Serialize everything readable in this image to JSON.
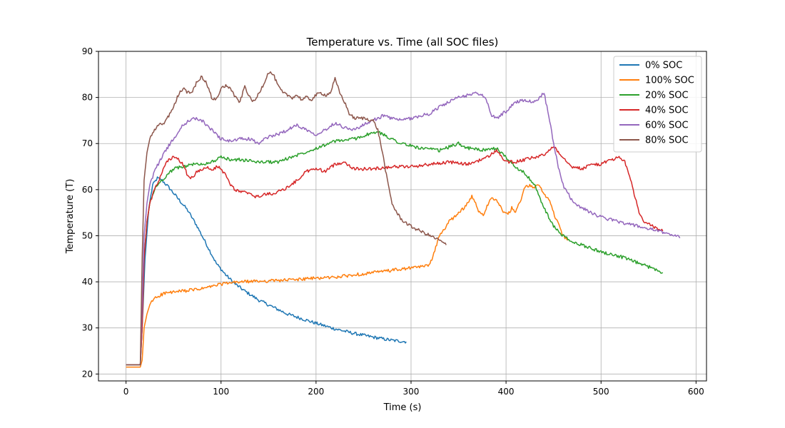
{
  "chart_data": {
    "type": "line",
    "title": "Temperature vs. Time (all SOC files)",
    "xlabel": "Time (s)",
    "ylabel": "Temperature (T)",
    "xlim": [
      -29,
      611
    ],
    "ylim": [
      18.5,
      90
    ],
    "xticks": [
      0,
      100,
      200,
      300,
      400,
      500,
      600
    ],
    "yticks": [
      20,
      30,
      40,
      50,
      60,
      70,
      80,
      90
    ],
    "grid": true,
    "legend_position": "top-right",
    "series": [
      {
        "name": "0% SOC",
        "color": "#1f77b4",
        "x": [
          0,
          15,
          17,
          20,
          24,
          28,
          33,
          38,
          45,
          55,
          65,
          75,
          85,
          95,
          105,
          115,
          125,
          140,
          155,
          170,
          185,
          200,
          220,
          240,
          260,
          280,
          295
        ],
        "y": [
          22,
          22,
          30,
          45,
          56,
          61,
          62.5,
          62,
          60.5,
          58,
          55.5,
          52,
          48,
          44,
          41.5,
          39.5,
          38,
          36,
          34.5,
          33,
          32,
          31,
          29.8,
          28.8,
          28,
          27.3,
          27
        ]
      },
      {
        "name": "100% SOC",
        "color": "#ff7f0e",
        "x": [
          0,
          15,
          17,
          19,
          22,
          25,
          30,
          40,
          60,
          80,
          90,
          100,
          120,
          150,
          180,
          200,
          220,
          240,
          260,
          280,
          300,
          318,
          322,
          326,
          330,
          340,
          350,
          358,
          364,
          368,
          372,
          376,
          380,
          385,
          390,
          394,
          398,
          402,
          406,
          410,
          415,
          420,
          425,
          430,
          435,
          440,
          445,
          450,
          455,
          460,
          465
        ],
        "y": [
          21.5,
          21.5,
          23,
          30,
          33,
          35,
          36.5,
          37.5,
          38,
          38.5,
          39,
          39.5,
          40,
          40.2,
          40.5,
          40.8,
          41,
          41.5,
          42,
          42.5,
          43,
          43.5,
          45,
          47.5,
          50,
          53,
          55,
          56.5,
          58.5,
          57,
          55,
          54.5,
          56.5,
          58.5,
          57.5,
          56.5,
          55,
          54.5,
          56,
          55,
          57.5,
          60.5,
          61,
          60.5,
          61,
          59,
          58,
          55,
          52.5,
          50,
          49
        ]
      },
      {
        "name": "20% SOC",
        "color": "#2ca02c",
        "x": [
          0,
          15,
          17,
          19,
          22,
          25,
          30,
          35,
          40,
          50,
          60,
          70,
          80,
          90,
          100,
          110,
          120,
          140,
          160,
          180,
          200,
          220,
          240,
          255,
          265,
          275,
          290,
          310,
          330,
          350,
          360,
          380,
          390,
          400,
          410,
          420,
          430,
          440,
          450,
          460,
          470,
          480,
          500,
          520,
          540,
          560,
          565
        ],
        "y": [
          22,
          22,
          30,
          45,
          53,
          57,
          60,
          61.5,
          62.5,
          64.5,
          65,
          65.5,
          65.5,
          66,
          67,
          66.5,
          66.5,
          66,
          66,
          67.5,
          69,
          70.5,
          71,
          72,
          72.5,
          71.5,
          70,
          69,
          68.5,
          70,
          69,
          68.5,
          69,
          67,
          65,
          63.5,
          61,
          56,
          52,
          50,
          48.5,
          48,
          46.5,
          45.5,
          44,
          42.5,
          42
        ]
      },
      {
        "name": "40% SOC",
        "color": "#d62728",
        "x": [
          0,
          15,
          17,
          19,
          22,
          25,
          30,
          35,
          40,
          45,
          50,
          55,
          60,
          65,
          70,
          75,
          80,
          85,
          90,
          95,
          100,
          105,
          110,
          115,
          120,
          125,
          130,
          135,
          140,
          145,
          150,
          160,
          170,
          180,
          190,
          200,
          210,
          220,
          230,
          240,
          260,
          280,
          300,
          320,
          340,
          360,
          380,
          390,
          400,
          410,
          420,
          430,
          440,
          445,
          450,
          460,
          470,
          480,
          490,
          500,
          510,
          520,
          525,
          530,
          535,
          540,
          545,
          555,
          565
        ],
        "y": [
          22,
          22,
          30,
          45,
          53,
          57,
          60,
          62,
          65,
          66.5,
          67,
          66.5,
          65.5,
          63,
          62.5,
          64,
          64.5,
          65,
          64,
          65,
          64.5,
          63,
          61,
          60,
          59.5,
          59.5,
          59,
          58.5,
          58.5,
          59,
          59,
          59.5,
          60.5,
          62,
          64,
          64.5,
          64,
          65.5,
          66,
          64.5,
          64.5,
          65,
          65,
          65.5,
          66,
          65.5,
          67,
          68.5,
          66,
          66,
          66.5,
          67,
          67.5,
          68.5,
          69.5,
          67,
          65,
          64.5,
          65.5,
          65.5,
          66.5,
          67,
          66,
          63,
          59,
          55,
          53,
          52,
          51
        ]
      },
      {
        "name": "60% SOC",
        "color": "#9467bd",
        "x": [
          0,
          15,
          17,
          19,
          22,
          25,
          30,
          35,
          40,
          50,
          60,
          70,
          80,
          90,
          100,
          110,
          120,
          130,
          140,
          150,
          160,
          170,
          180,
          190,
          200,
          210,
          220,
          230,
          240,
          250,
          260,
          270,
          280,
          290,
          300,
          310,
          320,
          330,
          340,
          350,
          360,
          370,
          375,
          380,
          385,
          390,
          400,
          410,
          420,
          430,
          440,
          445,
          450,
          455,
          460,
          470,
          480,
          490,
          500,
          510,
          520,
          530,
          540,
          550,
          560,
          570,
          580,
          583
        ],
        "y": [
          22,
          22,
          35,
          50,
          57,
          61,
          64,
          66,
          68,
          71,
          74,
          75.5,
          75,
          73,
          71,
          70.5,
          71,
          71,
          70,
          71.5,
          72,
          73,
          74,
          73,
          72,
          73,
          74.5,
          73.5,
          73,
          74,
          75,
          76,
          75.5,
          75,
          75.5,
          76,
          76.5,
          78,
          79,
          80,
          80.5,
          81,
          80.5,
          79,
          76,
          75.5,
          77,
          79,
          79.5,
          79,
          81,
          76,
          70,
          65,
          61,
          57.5,
          56,
          55,
          54,
          53.5,
          53,
          52.5,
          52,
          51.5,
          51,
          50.5,
          50,
          49.5
        ]
      },
      {
        "name": "80% SOC",
        "color": "#8c564b",
        "x": [
          0,
          15,
          17,
          19,
          22,
          25,
          30,
          35,
          40,
          45,
          50,
          55,
          60,
          65,
          70,
          75,
          80,
          85,
          90,
          95,
          100,
          105,
          110,
          115,
          120,
          125,
          130,
          135,
          140,
          145,
          150,
          155,
          160,
          165,
          170,
          175,
          180,
          185,
          190,
          195,
          200,
          205,
          210,
          215,
          220,
          225,
          230,
          235,
          240,
          250,
          260,
          265,
          270,
          275,
          280,
          285,
          290,
          300,
          310,
          320,
          330,
          337
        ],
        "y": [
          22,
          22,
          45,
          62,
          68,
          71,
          73,
          74,
          74.5,
          76,
          78,
          80.5,
          82,
          81,
          81.5,
          83.5,
          84.5,
          83,
          80,
          79.5,
          82,
          82.5,
          82,
          80,
          79,
          82.5,
          80,
          79,
          81,
          83,
          85.5,
          85,
          82.5,
          81,
          80.5,
          80,
          80.5,
          79.5,
          80,
          79.5,
          80.5,
          81,
          80.5,
          81,
          84,
          81,
          79,
          76.5,
          75.5,
          75.5,
          75,
          73,
          68,
          62,
          57,
          55,
          53.5,
          52,
          51,
          50,
          49,
          48
        ]
      }
    ]
  }
}
